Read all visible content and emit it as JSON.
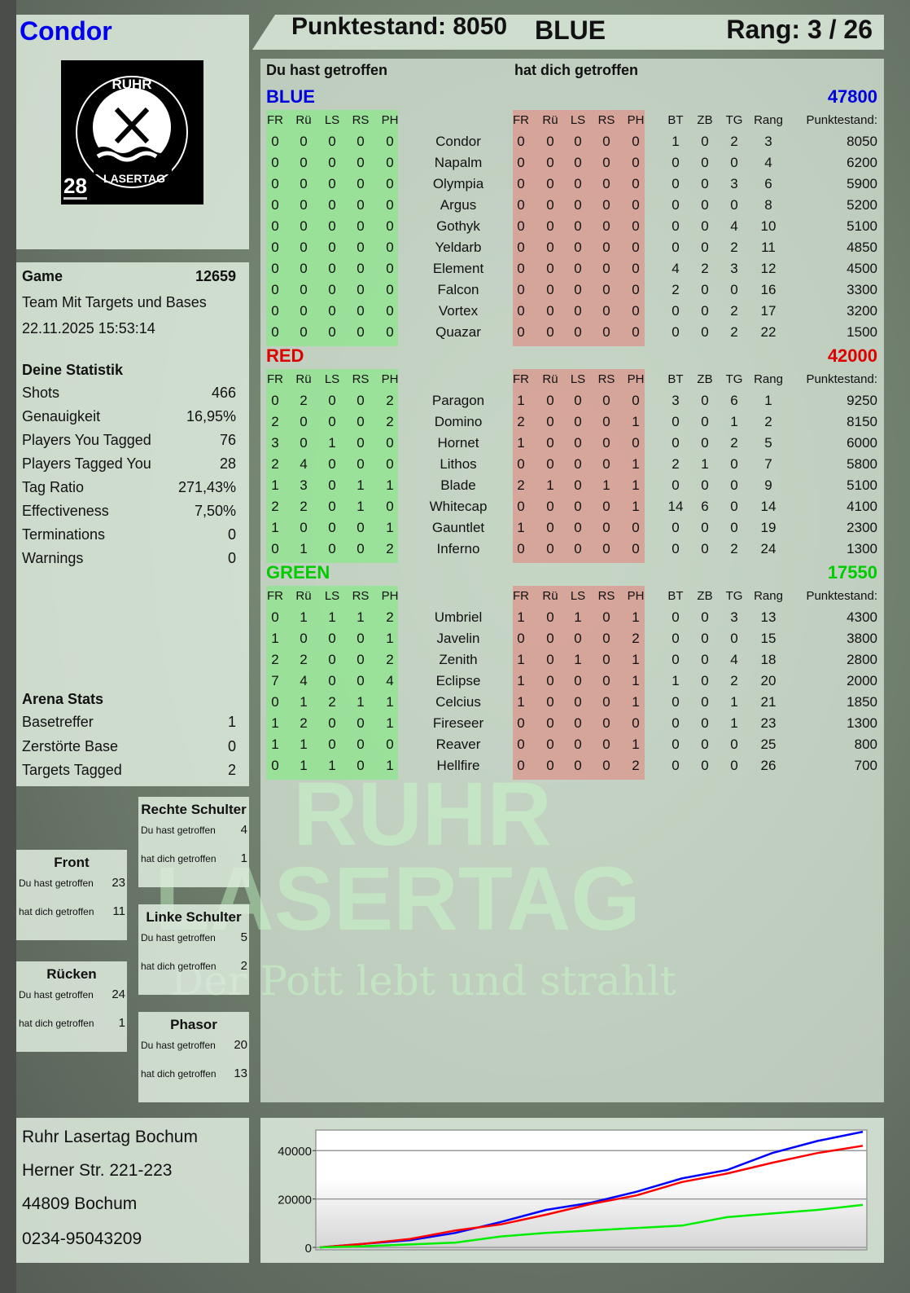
{
  "player": {
    "name": "Condor",
    "badge_number": "28",
    "logo_text": "RUHR LASERTAG"
  },
  "header": {
    "score_label": "Punktestand: 8050",
    "team": "BLUE",
    "rank_label": "Rang: 3 / 26"
  },
  "game": {
    "label": "Game",
    "id": "12659",
    "mode": "Team Mit Targets und Bases",
    "datetime": "22.11.2025 15:53:14"
  },
  "stats": {
    "title": "Deine Statistik",
    "rows": [
      {
        "label": "Shots",
        "value": "466"
      },
      {
        "label": "Genauigkeit",
        "value": "16,95%"
      },
      {
        "label": "Players You Tagged",
        "value": "76"
      },
      {
        "label": "Players Tagged You",
        "value": "28"
      },
      {
        "label": "Tag Ratio",
        "value": "271,43%"
      },
      {
        "label": "Effectiveness",
        "value": "7,50%"
      },
      {
        "label": "Terminations",
        "value": "0"
      },
      {
        "label": "Warnings",
        "value": "0"
      }
    ]
  },
  "arena": {
    "title": "Arena Stats",
    "rows": [
      {
        "label": "Basetreffer",
        "value": "1"
      },
      {
        "label": "Zerstörte Base",
        "value": "0"
      },
      {
        "label": "Targets Tagged",
        "value": "2"
      }
    ]
  },
  "zones": {
    "hit_label": "Du hast getroffen",
    "got_label": "hat dich getroffen",
    "items": [
      {
        "key": "rechte",
        "title": "Rechte Schulter",
        "hit": "4",
        "got": "1"
      },
      {
        "key": "front",
        "title": "Front",
        "hit": "23",
        "got": "11"
      },
      {
        "key": "linke",
        "title": "Linke Schulter",
        "hit": "5",
        "got": "2"
      },
      {
        "key": "ruecken",
        "title": "Rücken",
        "hit": "24",
        "got": "1"
      },
      {
        "key": "phasor",
        "title": "Phasor",
        "hit": "20",
        "got": "13"
      }
    ]
  },
  "address": [
    "Ruhr Lasertag Bochum",
    "Herner Str. 221-223",
    "44809 Bochum",
    "0234-95043209"
  ],
  "table": {
    "hit_heading": "Du hast getroffen",
    "got_heading": "hat dich getroffen",
    "zone_cols": [
      "FR",
      "Rü",
      "LS",
      "RS",
      "PH"
    ],
    "stat_cols": [
      "BT",
      "ZB",
      "TG",
      "Rang"
    ],
    "score_col": "Punktestand:",
    "teams": [
      {
        "name": "BLUE",
        "color": "#0000dd",
        "total": "47800",
        "players": [
          {
            "name": "Condor",
            "hit": [
              0,
              0,
              0,
              0,
              0
            ],
            "got": [
              0,
              0,
              0,
              0,
              0
            ],
            "stats": [
              1,
              0,
              2,
              3
            ],
            "score": "8050"
          },
          {
            "name": "Napalm",
            "hit": [
              0,
              0,
              0,
              0,
              0
            ],
            "got": [
              0,
              0,
              0,
              0,
              0
            ],
            "stats": [
              0,
              0,
              0,
              4
            ],
            "score": "6200"
          },
          {
            "name": "Olympia",
            "hit": [
              0,
              0,
              0,
              0,
              0
            ],
            "got": [
              0,
              0,
              0,
              0,
              0
            ],
            "stats": [
              0,
              0,
              3,
              6
            ],
            "score": "5900"
          },
          {
            "name": "Argus",
            "hit": [
              0,
              0,
              0,
              0,
              0
            ],
            "got": [
              0,
              0,
              0,
              0,
              0
            ],
            "stats": [
              0,
              0,
              0,
              8
            ],
            "score": "5200"
          },
          {
            "name": "Gothyk",
            "hit": [
              0,
              0,
              0,
              0,
              0
            ],
            "got": [
              0,
              0,
              0,
              0,
              0
            ],
            "stats": [
              0,
              0,
              4,
              10
            ],
            "score": "5100"
          },
          {
            "name": "Yeldarb",
            "hit": [
              0,
              0,
              0,
              0,
              0
            ],
            "got": [
              0,
              0,
              0,
              0,
              0
            ],
            "stats": [
              0,
              0,
              2,
              11
            ],
            "score": "4850"
          },
          {
            "name": "Element",
            "hit": [
              0,
              0,
              0,
              0,
              0
            ],
            "got": [
              0,
              0,
              0,
              0,
              0
            ],
            "stats": [
              4,
              2,
              3,
              12
            ],
            "score": "4500"
          },
          {
            "name": "Falcon",
            "hit": [
              0,
              0,
              0,
              0,
              0
            ],
            "got": [
              0,
              0,
              0,
              0,
              0
            ],
            "stats": [
              2,
              0,
              0,
              16
            ],
            "score": "3300"
          },
          {
            "name": "Vortex",
            "hit": [
              0,
              0,
              0,
              0,
              0
            ],
            "got": [
              0,
              0,
              0,
              0,
              0
            ],
            "stats": [
              0,
              0,
              2,
              17
            ],
            "score": "3200"
          },
          {
            "name": "Quazar",
            "hit": [
              0,
              0,
              0,
              0,
              0
            ],
            "got": [
              0,
              0,
              0,
              0,
              0
            ],
            "stats": [
              0,
              0,
              2,
              22
            ],
            "score": "1500"
          }
        ]
      },
      {
        "name": "RED",
        "color": "#dd0000",
        "total": "42000",
        "players": [
          {
            "name": "Paragon",
            "hit": [
              0,
              2,
              0,
              0,
              2
            ],
            "got": [
              1,
              0,
              0,
              0,
              0
            ],
            "stats": [
              3,
              0,
              6,
              1
            ],
            "score": "9250"
          },
          {
            "name": "Domino",
            "hit": [
              2,
              0,
              0,
              0,
              2
            ],
            "got": [
              2,
              0,
              0,
              0,
              1
            ],
            "stats": [
              0,
              0,
              1,
              2
            ],
            "score": "8150"
          },
          {
            "name": "Hornet",
            "hit": [
              3,
              0,
              1,
              0,
              0
            ],
            "got": [
              1,
              0,
              0,
              0,
              0
            ],
            "stats": [
              0,
              0,
              2,
              5
            ],
            "score": "6000"
          },
          {
            "name": "Lithos",
            "hit": [
              2,
              4,
              0,
              0,
              0
            ],
            "got": [
              0,
              0,
              0,
              0,
              1
            ],
            "stats": [
              2,
              1,
              0,
              7
            ],
            "score": "5800"
          },
          {
            "name": "Blade",
            "hit": [
              1,
              3,
              0,
              1,
              1
            ],
            "got": [
              2,
              1,
              0,
              1,
              1
            ],
            "stats": [
              0,
              0,
              0,
              9
            ],
            "score": "5100"
          },
          {
            "name": "Whitecap",
            "hit": [
              2,
              2,
              0,
              1,
              0
            ],
            "got": [
              0,
              0,
              0,
              0,
              1
            ],
            "stats": [
              14,
              6,
              0,
              14
            ],
            "score": "4100"
          },
          {
            "name": "Gauntlet",
            "hit": [
              1,
              0,
              0,
              0,
              1
            ],
            "got": [
              1,
              0,
              0,
              0,
              0
            ],
            "stats": [
              0,
              0,
              0,
              19
            ],
            "score": "2300"
          },
          {
            "name": "Inferno",
            "hit": [
              0,
              1,
              0,
              0,
              2
            ],
            "got": [
              0,
              0,
              0,
              0,
              0
            ],
            "stats": [
              0,
              0,
              2,
              24
            ],
            "score": "1300"
          }
        ]
      },
      {
        "name": "GREEN",
        "color": "#00cc00",
        "total": "17550",
        "players": [
          {
            "name": "Umbriel",
            "hit": [
              0,
              1,
              1,
              1,
              2
            ],
            "got": [
              1,
              0,
              1,
              0,
              1
            ],
            "stats": [
              0,
              0,
              3,
              13
            ],
            "score": "4300"
          },
          {
            "name": "Javelin",
            "hit": [
              1,
              0,
              0,
              0,
              1
            ],
            "got": [
              0,
              0,
              0,
              0,
              2
            ],
            "stats": [
              0,
              0,
              0,
              15
            ],
            "score": "3800"
          },
          {
            "name": "Zenith",
            "hit": [
              2,
              2,
              0,
              0,
              2
            ],
            "got": [
              1,
              0,
              1,
              0,
              1
            ],
            "stats": [
              0,
              0,
              4,
              18
            ],
            "score": "2800"
          },
          {
            "name": "Eclipse",
            "hit": [
              7,
              4,
              0,
              0,
              4
            ],
            "got": [
              1,
              0,
              0,
              0,
              1
            ],
            "stats": [
              1,
              0,
              2,
              20
            ],
            "score": "2000"
          },
          {
            "name": "Celcius",
            "hit": [
              0,
              1,
              2,
              1,
              1
            ],
            "got": [
              1,
              0,
              0,
              0,
              1
            ],
            "stats": [
              0,
              0,
              1,
              21
            ],
            "score": "1850"
          },
          {
            "name": "Fireseer",
            "hit": [
              1,
              2,
              0,
              0,
              1
            ],
            "got": [
              0,
              0,
              0,
              0,
              0
            ],
            "stats": [
              0,
              0,
              1,
              23
            ],
            "score": "1300"
          },
          {
            "name": "Reaver",
            "hit": [
              1,
              1,
              0,
              0,
              0
            ],
            "got": [
              0,
              0,
              0,
              0,
              1
            ],
            "stats": [
              0,
              0,
              0,
              25
            ],
            "score": "800"
          },
          {
            "name": "Hellfire",
            "hit": [
              0,
              1,
              1,
              0,
              1
            ],
            "got": [
              0,
              0,
              0,
              0,
              2
            ],
            "stats": [
              0,
              0,
              0,
              26
            ],
            "score": "700"
          }
        ]
      }
    ]
  },
  "watermark": {
    "line1": "RUHR",
    "line2": "LASERTAG",
    "line3": "Der Pott lebt und strahlt"
  },
  "chart_data": {
    "type": "line",
    "ylim": [
      0,
      48500
    ],
    "yticks": [
      "0",
      "20000",
      "40000"
    ],
    "grid": true,
    "series": [
      {
        "color": "#0000ff",
        "values": [
          0,
          1500,
          3000,
          6000,
          10500,
          15500,
          18500,
          23000,
          28500,
          32000,
          39000,
          44000,
          47800
        ]
      },
      {
        "color": "#ff0000",
        "values": [
          0,
          1500,
          3500,
          7000,
          9500,
          13500,
          18000,
          21500,
          27000,
          30500,
          35000,
          39000,
          42000
        ]
      },
      {
        "color": "#00ee00",
        "values": [
          0,
          500,
          1200,
          2000,
          4500,
          6000,
          7000,
          8000,
          9000,
          12500,
          14000,
          15500,
          17550
        ]
      }
    ]
  }
}
